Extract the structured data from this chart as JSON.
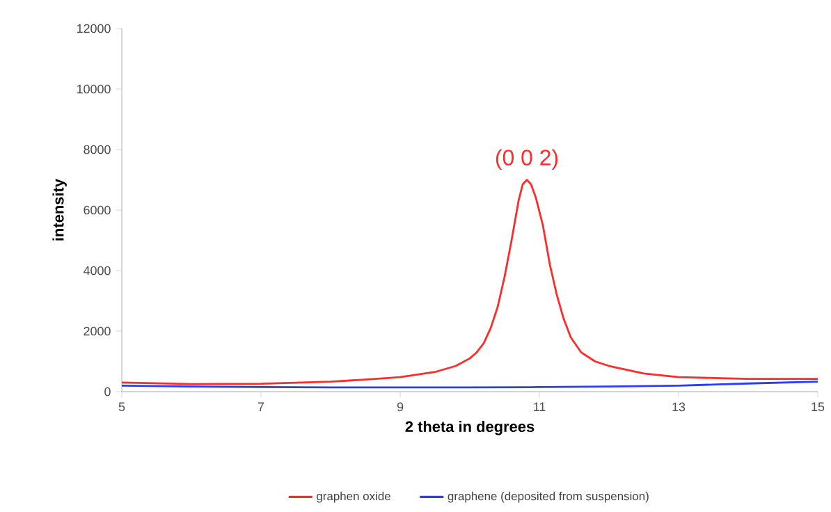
{
  "chart_data": {
    "type": "line",
    "xlabel": "2 theta in degrees",
    "ylabel": "intensity",
    "xlim": [
      5,
      15
    ],
    "xticks": [
      5,
      7,
      9,
      11,
      13,
      15
    ],
    "ylim": [
      0,
      12000
    ],
    "yticks": [
      0,
      2000,
      4000,
      6000,
      8000,
      10000,
      12000
    ],
    "grid": false,
    "legend": "bottom",
    "marker": "none",
    "line_style": "solid",
    "annotations": [
      {
        "text": "(0 0 2)",
        "x": 10.82,
        "y": 7000
      }
    ],
    "series": [
      {
        "name": "graphen oxide",
        "color": "#ff2a2a",
        "x": [
          5,
          6,
          7,
          8,
          8.5,
          9,
          9.5,
          9.8,
          10,
          10.1,
          10.2,
          10.3,
          10.4,
          10.5,
          10.6,
          10.7,
          10.76,
          10.82,
          10.88,
          10.95,
          11.05,
          11.15,
          11.25,
          11.35,
          11.45,
          11.6,
          11.8,
          12,
          12.5,
          13,
          14,
          15
        ],
        "values": [
          300,
          250,
          260,
          330,
          400,
          480,
          650,
          850,
          1100,
          1300,
          1600,
          2100,
          2800,
          3800,
          5000,
          6300,
          6850,
          7000,
          6850,
          6400,
          5500,
          4200,
          3200,
          2400,
          1800,
          1300,
          1000,
          850,
          600,
          480,
          420,
          420
        ]
      },
      {
        "name": "graphene (deposited from suspension)",
        "color": "#2a3cff",
        "x": [
          5,
          6,
          7,
          8,
          9,
          10,
          11,
          12,
          13,
          14,
          15
        ],
        "values": [
          200,
          170,
          150,
          140,
          140,
          140,
          150,
          170,
          200,
          270,
          330
        ]
      }
    ]
  }
}
